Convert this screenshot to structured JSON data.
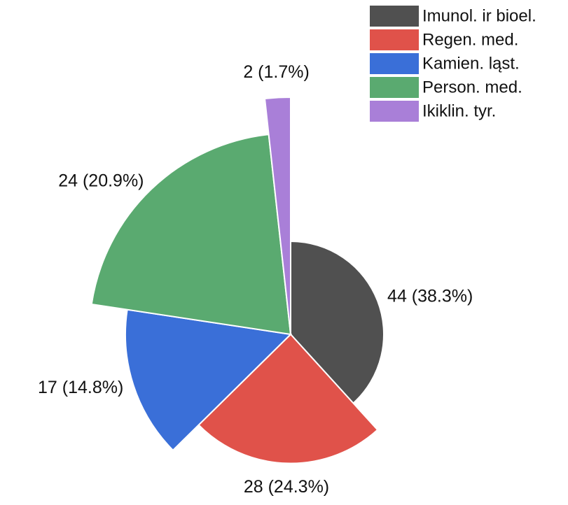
{
  "chart_data": {
    "type": "pie",
    "categories": [
      "Imunol. ir bioel.",
      "Regen. med.",
      "Kamien. ląst.",
      "Person. med.",
      "Ikiklin. tyr."
    ],
    "values": [
      44,
      28,
      17,
      24,
      2
    ],
    "value_labels": [
      "44 (38.3%)",
      "28 (24.3%)",
      "17 (14.8%)",
      "24 (20.9%)",
      "2 (1.7%)"
    ],
    "colors": [
      "#505050",
      "#e0524a",
      "#3a6fd8",
      "#5aaa70",
      "#a97fd8"
    ],
    "legend": "top-right"
  }
}
